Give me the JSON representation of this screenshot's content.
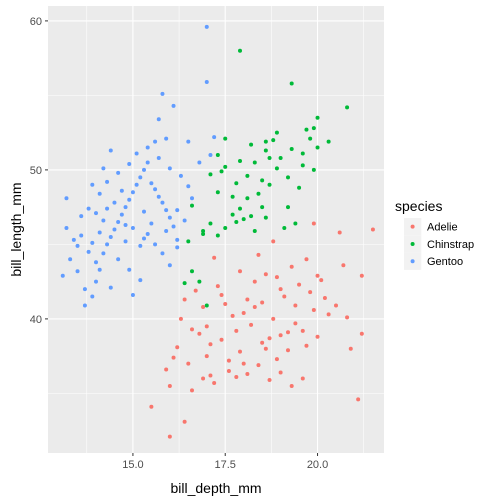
{
  "chart_data": {
    "type": "scatter",
    "xlabel": "bill_depth_mm",
    "ylabel": "bill_length_mm",
    "xlim": [
      12.7,
      21.8
    ],
    "ylim": [
      31.0,
      61.0
    ],
    "x_ticks": [
      15.0,
      17.5,
      20.0
    ],
    "x_tick_labels": [
      "15.0",
      "17.5",
      "20.0"
    ],
    "y_ticks": [
      40,
      50,
      60
    ],
    "y_tick_labels": [
      "40",
      "50",
      "60"
    ],
    "grid": true,
    "legend_position": "right",
    "legend_title": "species",
    "panel_background": "#EBEBEB",
    "series": [
      {
        "name": "Adelie",
        "color": "#F8766D",
        "points": [
          [
            16.0,
            32.1
          ],
          [
            16.4,
            33.1
          ],
          [
            15.5,
            34.1
          ],
          [
            16.6,
            35.2
          ],
          [
            16.0,
            35.5
          ],
          [
            16.9,
            36.0
          ],
          [
            17.1,
            36.2
          ],
          [
            17.2,
            35.7
          ],
          [
            17.6,
            36.5
          ],
          [
            18.1,
            36.3
          ],
          [
            18.4,
            36.9
          ],
          [
            18.9,
            37.3
          ],
          [
            19.0,
            36.4
          ],
          [
            19.3,
            35.5
          ],
          [
            19.6,
            36.0
          ],
          [
            21.1,
            34.6
          ],
          [
            16.5,
            37.0
          ],
          [
            17.0,
            37.5
          ],
          [
            17.9,
            37.8
          ],
          [
            18.6,
            38.0
          ],
          [
            19.2,
            37.9
          ],
          [
            19.7,
            38.2
          ],
          [
            20.0,
            38.8
          ],
          [
            16.2,
            38.1
          ],
          [
            16.8,
            39.0
          ],
          [
            17.4,
            38.6
          ],
          [
            17.8,
            39.2
          ],
          [
            18.2,
            39.6
          ],
          [
            18.8,
            40.0
          ],
          [
            19.4,
            39.7
          ],
          [
            19.9,
            40.6
          ],
          [
            20.5,
            40.9
          ],
          [
            16.3,
            40.0
          ],
          [
            16.9,
            40.8
          ],
          [
            17.5,
            41.0
          ],
          [
            18.0,
            40.4
          ],
          [
            18.5,
            41.1
          ],
          [
            19.1,
            41.5
          ],
          [
            19.8,
            41.8
          ],
          [
            20.2,
            41.4
          ],
          [
            16.7,
            41.9
          ],
          [
            17.3,
            42.2
          ],
          [
            18.3,
            42.5
          ],
          [
            18.9,
            42.8
          ],
          [
            19.5,
            42.3
          ],
          [
            20.1,
            42.6
          ],
          [
            17.9,
            43.2
          ],
          [
            18.6,
            43.0
          ],
          [
            19.3,
            43.5
          ],
          [
            20.7,
            43.6
          ],
          [
            21.2,
            42.9
          ],
          [
            17.0,
            39.5
          ],
          [
            18.7,
            38.7
          ],
          [
            19.6,
            39.2
          ],
          [
            20.8,
            40.1
          ],
          [
            21.2,
            39.0
          ],
          [
            17.2,
            44.1
          ],
          [
            18.4,
            44.3
          ],
          [
            19.7,
            44.0
          ],
          [
            18.8,
            45.2
          ],
          [
            21.5,
            46.0
          ],
          [
            19.9,
            46.4
          ],
          [
            20.6,
            45.8
          ],
          [
            17.6,
            37.2
          ],
          [
            18.0,
            37.0
          ],
          [
            18.5,
            38.4
          ],
          [
            19.0,
            38.9
          ],
          [
            17.7,
            40.2
          ],
          [
            18.3,
            40.8
          ],
          [
            19.4,
            40.9
          ],
          [
            20.3,
            40.3
          ],
          [
            16.6,
            39.3
          ],
          [
            17.1,
            38.3
          ],
          [
            15.9,
            36.6
          ],
          [
            16.1,
            37.4
          ],
          [
            17.4,
            41.6
          ],
          [
            19.0,
            42.0
          ],
          [
            20.0,
            42.9
          ],
          [
            18.1,
            41.3
          ],
          [
            19.2,
            39.1
          ],
          [
            17.8,
            36.1
          ],
          [
            20.9,
            38.0
          ],
          [
            16.4,
            41.3
          ],
          [
            18.7,
            35.9
          ]
        ]
      },
      {
        "name": "Chinstrap",
        "color": "#00BA38",
        "points": [
          [
            17.0,
            40.9
          ],
          [
            16.4,
            42.4
          ],
          [
            16.8,
            42.5
          ],
          [
            16.6,
            43.2
          ],
          [
            16.5,
            45.2
          ],
          [
            16.9,
            45.7
          ],
          [
            17.3,
            45.6
          ],
          [
            17.5,
            46.1
          ],
          [
            17.1,
            46.4
          ],
          [
            17.8,
            46.5
          ],
          [
            18.0,
            46.7
          ],
          [
            17.7,
            47.0
          ],
          [
            18.2,
            46.9
          ],
          [
            18.3,
            45.9
          ],
          [
            17.9,
            47.4
          ],
          [
            18.5,
            47.5
          ],
          [
            18.6,
            46.8
          ],
          [
            19.1,
            46.1
          ],
          [
            19.4,
            46.4
          ],
          [
            16.6,
            47.6
          ],
          [
            17.3,
            48.5
          ],
          [
            17.8,
            49.1
          ],
          [
            18.1,
            49.6
          ],
          [
            18.4,
            48.4
          ],
          [
            18.7,
            49.0
          ],
          [
            18.9,
            50.1
          ],
          [
            19.2,
            49.5
          ],
          [
            19.5,
            48.8
          ],
          [
            19.6,
            50.3
          ],
          [
            19.9,
            50.0
          ],
          [
            19.0,
            50.8
          ],
          [
            18.3,
            50.5
          ],
          [
            18.6,
            51.3
          ],
          [
            17.9,
            50.6
          ],
          [
            17.5,
            50.2
          ],
          [
            17.1,
            49.7
          ],
          [
            18.8,
            52.0
          ],
          [
            19.3,
            51.4
          ],
          [
            19.8,
            52.1
          ],
          [
            20.0,
            51.5
          ],
          [
            19.7,
            52.7
          ],
          [
            18.9,
            52.5
          ],
          [
            18.2,
            51.7
          ],
          [
            17.5,
            52.1
          ],
          [
            17.3,
            51.0
          ],
          [
            19.3,
            55.8
          ],
          [
            20.8,
            54.2
          ],
          [
            17.9,
            58.0
          ],
          [
            18.5,
            49.3
          ],
          [
            18.1,
            48.1
          ],
          [
            19.2,
            47.5
          ],
          [
            20.3,
            51.9
          ],
          [
            20.0,
            53.5
          ],
          [
            18.6,
            51.9
          ],
          [
            17.4,
            49.9
          ],
          [
            19.6,
            51.1
          ],
          [
            18.7,
            50.8
          ],
          [
            16.9,
            45.9
          ],
          [
            19.9,
            52.8
          ],
          [
            17.7,
            48.2
          ]
        ]
      },
      {
        "name": "Gentoo",
        "color": "#619CFF",
        "points": [
          [
            13.1,
            42.9
          ],
          [
            13.3,
            44.0
          ],
          [
            13.5,
            44.9
          ],
          [
            13.7,
            42.0
          ],
          [
            13.9,
            41.5
          ],
          [
            14.0,
            42.5
          ],
          [
            14.1,
            43.3
          ],
          [
            14.2,
            44.4
          ],
          [
            14.3,
            45.0
          ],
          [
            14.4,
            45.5
          ],
          [
            14.5,
            46.0
          ],
          [
            14.6,
            46.5
          ],
          [
            14.7,
            47.0
          ],
          [
            14.8,
            47.5
          ],
          [
            14.9,
            48.0
          ],
          [
            15.0,
            48.5
          ],
          [
            15.1,
            49.0
          ],
          [
            15.2,
            49.5
          ],
          [
            15.3,
            50.0
          ],
          [
            15.4,
            50.5
          ],
          [
            15.5,
            49.1
          ],
          [
            15.6,
            48.7
          ],
          [
            15.7,
            48.2
          ],
          [
            15.8,
            47.8
          ],
          [
            15.9,
            47.3
          ],
          [
            16.0,
            46.8
          ],
          [
            16.1,
            46.2
          ],
          [
            16.2,
            45.3
          ],
          [
            13.2,
            46.1
          ],
          [
            13.4,
            45.3
          ],
          [
            13.6,
            46.9
          ],
          [
            13.8,
            47.4
          ],
          [
            13.5,
            43.2
          ],
          [
            13.8,
            44.5
          ],
          [
            14.0,
            43.8
          ],
          [
            14.2,
            46.6
          ],
          [
            14.5,
            47.8
          ],
          [
            14.8,
            45.2
          ],
          [
            15.0,
            46.1
          ],
          [
            15.2,
            44.9
          ],
          [
            15.4,
            45.7
          ],
          [
            15.6,
            45.0
          ],
          [
            15.8,
            44.4
          ],
          [
            16.0,
            43.6
          ],
          [
            14.1,
            48.4
          ],
          [
            14.3,
            49.2
          ],
          [
            14.6,
            49.8
          ],
          [
            14.9,
            50.4
          ],
          [
            15.1,
            51.1
          ],
          [
            15.4,
            51.5
          ],
          [
            15.7,
            50.8
          ],
          [
            16.0,
            50.1
          ],
          [
            16.3,
            49.6
          ],
          [
            16.5,
            48.9
          ],
          [
            16.6,
            48.1
          ],
          [
            16.2,
            47.3
          ],
          [
            16.4,
            46.6
          ],
          [
            15.9,
            52.1
          ],
          [
            15.7,
            53.4
          ],
          [
            16.1,
            54.3
          ],
          [
            15.8,
            55.1
          ],
          [
            17.0,
            59.6
          ],
          [
            17.0,
            55.9
          ],
          [
            17.2,
            52.2
          ],
          [
            14.4,
            51.3
          ],
          [
            13.9,
            49.0
          ],
          [
            13.6,
            45.6
          ],
          [
            13.9,
            45.1
          ],
          [
            14.1,
            45.8
          ],
          [
            14.3,
            47.4
          ],
          [
            14.7,
            48.6
          ],
          [
            15.3,
            47.2
          ],
          [
            15.5,
            46.4
          ],
          [
            15.9,
            45.9
          ],
          [
            16.2,
            44.8
          ],
          [
            14.6,
            44.0
          ],
          [
            14.9,
            43.3
          ],
          [
            15.2,
            42.6
          ],
          [
            13.7,
            40.9
          ],
          [
            14.4,
            42.1
          ],
          [
            15.0,
            41.6
          ],
          [
            16.5,
            51.9
          ],
          [
            17.1,
            51.0
          ],
          [
            16.8,
            50.5
          ],
          [
            13.2,
            48.1
          ],
          [
            14.0,
            47.1
          ],
          [
            14.2,
            50.1
          ],
          [
            15.6,
            51.9
          ],
          [
            14.8,
            46.3
          ],
          [
            15.3,
            45.4
          ]
        ]
      }
    ]
  }
}
